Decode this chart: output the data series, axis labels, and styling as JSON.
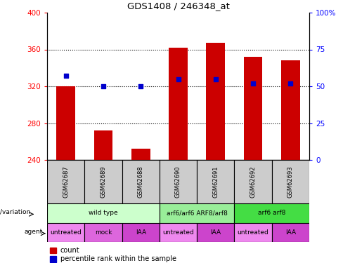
{
  "title": "GDS1408 / 246348_at",
  "samples": [
    "GSM62687",
    "GSM62689",
    "GSM62688",
    "GSM62690",
    "GSM62691",
    "GSM62692",
    "GSM62693"
  ],
  "bar_values": [
    320,
    272,
    252,
    362,
    367,
    352,
    348
  ],
  "bar_bottom": 240,
  "percentile_values": [
    57,
    50,
    50,
    55,
    55,
    52,
    52
  ],
  "ylim_left": [
    240,
    400
  ],
  "ylim_right": [
    0,
    100
  ],
  "yticks_left": [
    240,
    280,
    320,
    360,
    400
  ],
  "yticks_right": [
    0,
    25,
    50,
    75,
    100
  ],
  "bar_color": "#cc0000",
  "dot_color": "#0000cc",
  "genotype_groups": [
    {
      "label": "wild type",
      "start": 0,
      "end": 3,
      "color": "#ccffcc"
    },
    {
      "label": "arf6/arf6 ARF8/arf8",
      "start": 3,
      "end": 5,
      "color": "#99ee99"
    },
    {
      "label": "arf6 arf8",
      "start": 5,
      "end": 7,
      "color": "#44dd44"
    }
  ],
  "agent_groups": [
    {
      "label": "untreated",
      "start": 0,
      "end": 1,
      "color": "#ee88ee"
    },
    {
      "label": "mock",
      "start": 1,
      "end": 2,
      "color": "#dd66dd"
    },
    {
      "label": "IAA",
      "start": 2,
      "end": 3,
      "color": "#cc44cc"
    },
    {
      "label": "untreated",
      "start": 3,
      "end": 4,
      "color": "#ee88ee"
    },
    {
      "label": "IAA",
      "start": 4,
      "end": 5,
      "color": "#cc44cc"
    },
    {
      "label": "untreated",
      "start": 5,
      "end": 6,
      "color": "#ee88ee"
    },
    {
      "label": "IAA",
      "start": 6,
      "end": 7,
      "color": "#cc44cc"
    }
  ],
  "sample_row_color": "#cccccc",
  "legend_count_color": "#cc0000",
  "legend_percentile_color": "#0000cc",
  "fig_width": 4.88,
  "fig_height": 3.75,
  "dpi": 100
}
